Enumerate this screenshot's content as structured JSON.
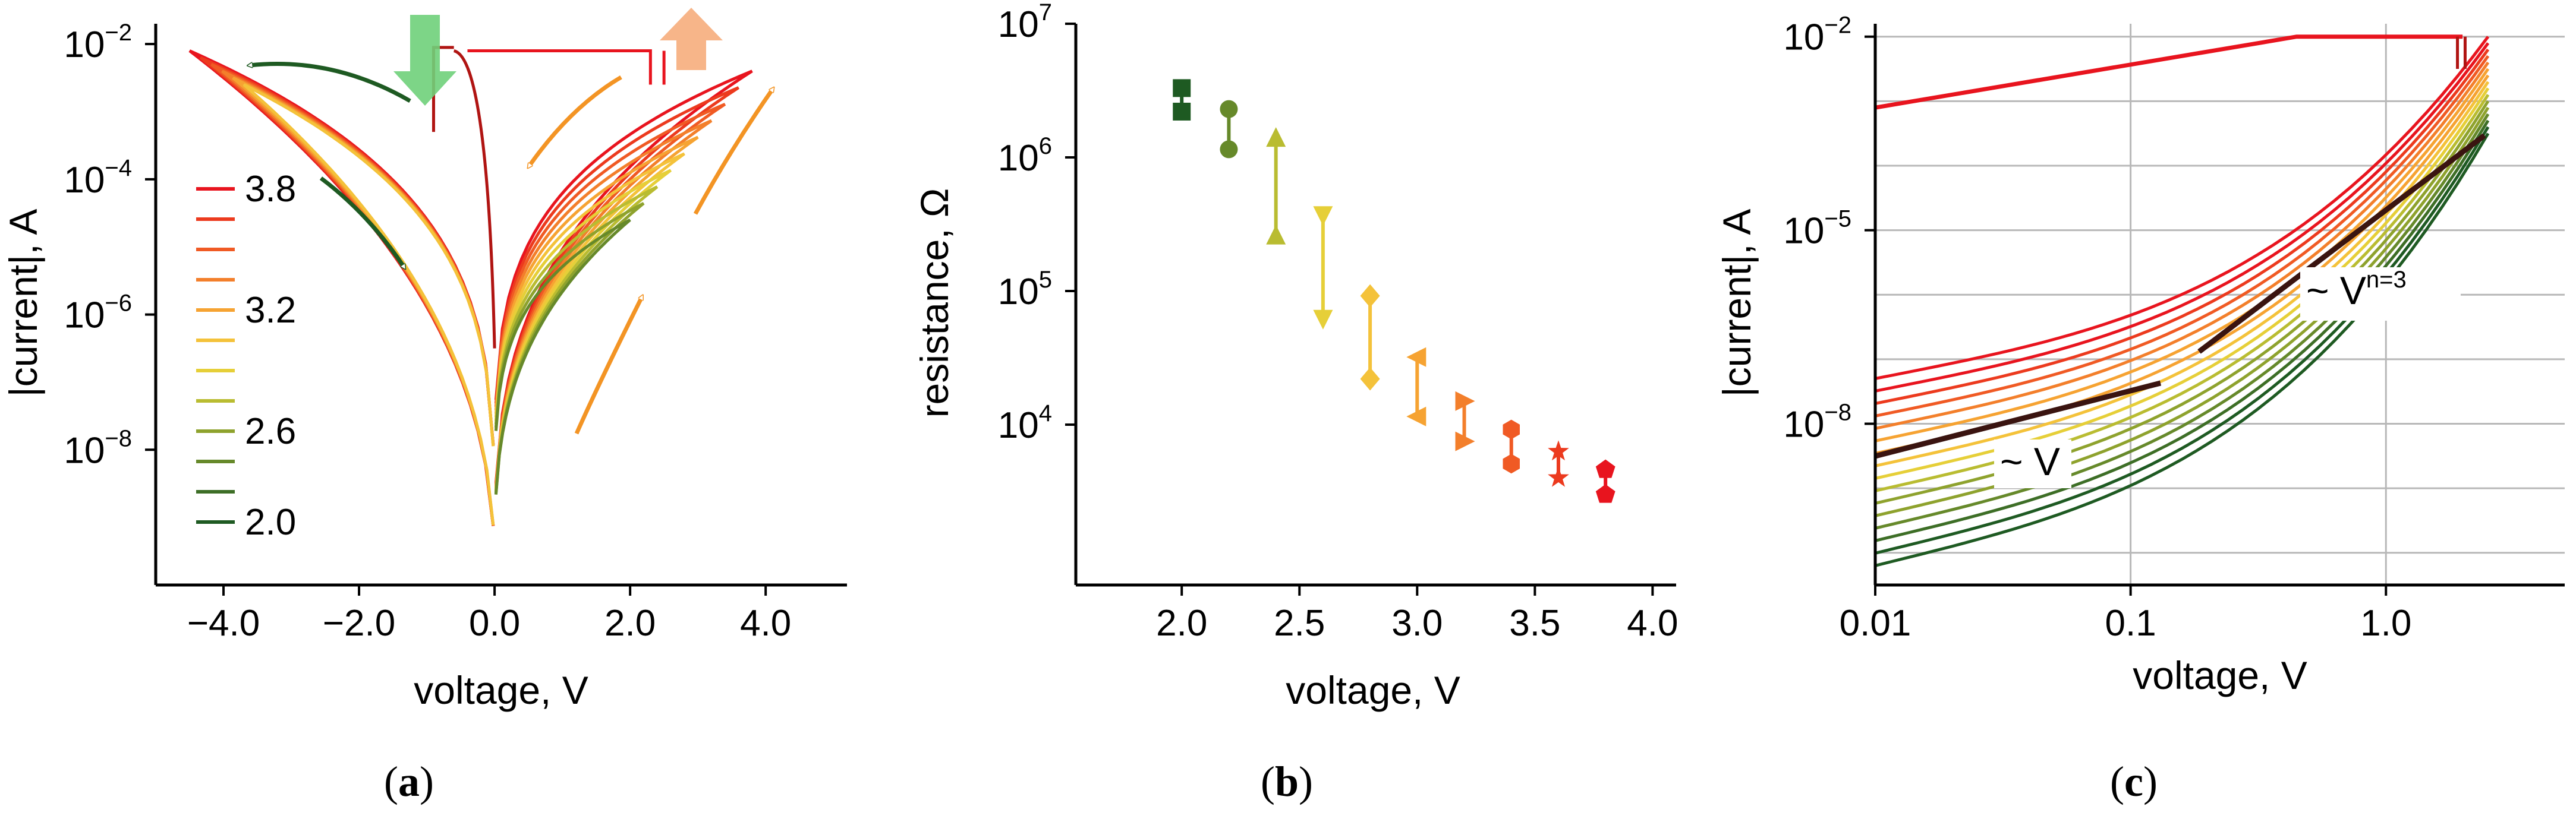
{
  "panels": [
    {
      "caption_letter": "a",
      "chart_data": {
        "type": "line",
        "xlabel": "voltage, V",
        "ylabel": "|current|, A",
        "xlim": [
          -5,
          5.2
        ],
        "ylim_log10": [
          -10,
          -1.7
        ],
        "y_scale": "log",
        "x_ticks": [
          "−4.0",
          "−2.0",
          "0.0",
          "2.0",
          "4.0"
        ],
        "x_tick_values": [
          -4,
          -2,
          0,
          2,
          4
        ],
        "y_ticks": [
          {
            "base": "10",
            "exp": "−2",
            "value": -2
          },
          {
            "base": "10",
            "exp": "−4",
            "value": -4
          },
          {
            "base": "10",
            "exp": "−6",
            "value": -6
          },
          {
            "base": "10",
            "exp": "−8",
            "value": -8
          }
        ],
        "legend_placement": "left",
        "legend_labels": [
          "3.8",
          "",
          "",
          "",
          "3.2",
          "",
          "",
          "",
          "2.6",
          "",
          "",
          "2.0"
        ],
        "sweep_voltages": [
          3.8,
          3.6,
          3.4,
          3.2,
          3.0,
          2.8,
          2.6,
          2.4,
          2.2,
          2.0
        ],
        "series_colors": [
          "#e8141e",
          "#ec3a1e",
          "#f05a24",
          "#f37f2b",
          "#f6a332",
          "#f4c23a",
          "#e6cf38",
          "#b9bc31",
          "#8ea22d",
          "#66892a",
          "#3d6e26",
          "#1e5a22"
        ],
        "grid": false
      }
    },
    {
      "caption_letter": "b",
      "chart_data": {
        "type": "scatter",
        "xlabel": "voltage, V",
        "ylabel": "resistance, Ω",
        "xlim": [
          1.55,
          4.1
        ],
        "ylim_log10": [
          2.8,
          7
        ],
        "y_scale": "log",
        "x_ticks": [
          "2.0",
          "2.5",
          "3.0",
          "3.5",
          "4.0"
        ],
        "x_tick_values": [
          2.0,
          2.5,
          3.0,
          3.5,
          4.0
        ],
        "y_ticks": [
          {
            "base": "10",
            "exp": "7",
            "value": 7
          },
          {
            "base": "10",
            "exp": "6",
            "value": 6
          },
          {
            "base": "10",
            "exp": "5",
            "value": 5
          },
          {
            "base": "10",
            "exp": "4",
            "value": 4
          }
        ],
        "points": [
          {
            "v": 2.0,
            "r_high": 3300000,
            "r_low": 2200000,
            "marker": "square",
            "color": "#1e5a22"
          },
          {
            "v": 2.2,
            "r_high": 2300000,
            "r_low": 1150000,
            "marker": "circle",
            "color": "#66892a"
          },
          {
            "v": 2.4,
            "r_high": 1400000,
            "r_low": 260000,
            "marker": "triangle-up",
            "color": "#b9bc31"
          },
          {
            "v": 2.6,
            "r_high": 370000,
            "r_low": 62000,
            "marker": "triangle-down",
            "color": "#e6cf38"
          },
          {
            "v": 2.8,
            "r_high": 92000,
            "r_low": 22000,
            "marker": "diamond",
            "color": "#f4c23a"
          },
          {
            "v": 3.0,
            "r_high": 32000,
            "r_low": 11500,
            "marker": "triangle-left",
            "color": "#f6a332"
          },
          {
            "v": 3.2,
            "r_high": 15000,
            "r_low": 7500,
            "marker": "triangle-right",
            "color": "#f37f2b"
          },
          {
            "v": 3.4,
            "r_high": 9200,
            "r_low": 5100,
            "marker": "hexagon",
            "color": "#f05a24"
          },
          {
            "v": 3.6,
            "r_high": 6300,
            "r_low": 4000,
            "marker": "star",
            "color": "#ec3a1e"
          },
          {
            "v": 3.8,
            "r_high": 4600,
            "r_low": 3000,
            "marker": "pentagon",
            "color": "#e8141e"
          }
        ],
        "grid": false
      }
    },
    {
      "caption_letter": "c",
      "chart_data": {
        "type": "line",
        "xlabel": "voltage, V",
        "ylabel": "|current|, A",
        "x_scale": "log",
        "y_scale": "log",
        "xlim_log10": [
          -2,
          0.7
        ],
        "ylim_log10": [
          -10.5,
          -1.8
        ],
        "x_ticks": [
          "0.01",
          "0.1",
          "1.0"
        ],
        "x_tick_values": [
          -2,
          -1,
          0
        ],
        "y_ticks": [
          {
            "base": "10",
            "exp": "−2",
            "value": -2
          },
          {
            "base": "10",
            "exp": "−5",
            "value": -5
          },
          {
            "base": "10",
            "exp": "−8",
            "value": -8
          }
        ],
        "annotations": [
          {
            "text": "~ V",
            "sup": ""
          },
          {
            "text": "~ V",
            "sup": "n=3"
          }
        ],
        "series_colors": [
          "#e8141e",
          "#ec3a1e",
          "#f05a24",
          "#f37f2b",
          "#f6a332",
          "#f4c23a",
          "#e6cf38",
          "#b9bc31",
          "#8ea22d",
          "#66892a",
          "#3d6e26",
          "#1e5a22"
        ],
        "grid": true
      }
    }
  ]
}
